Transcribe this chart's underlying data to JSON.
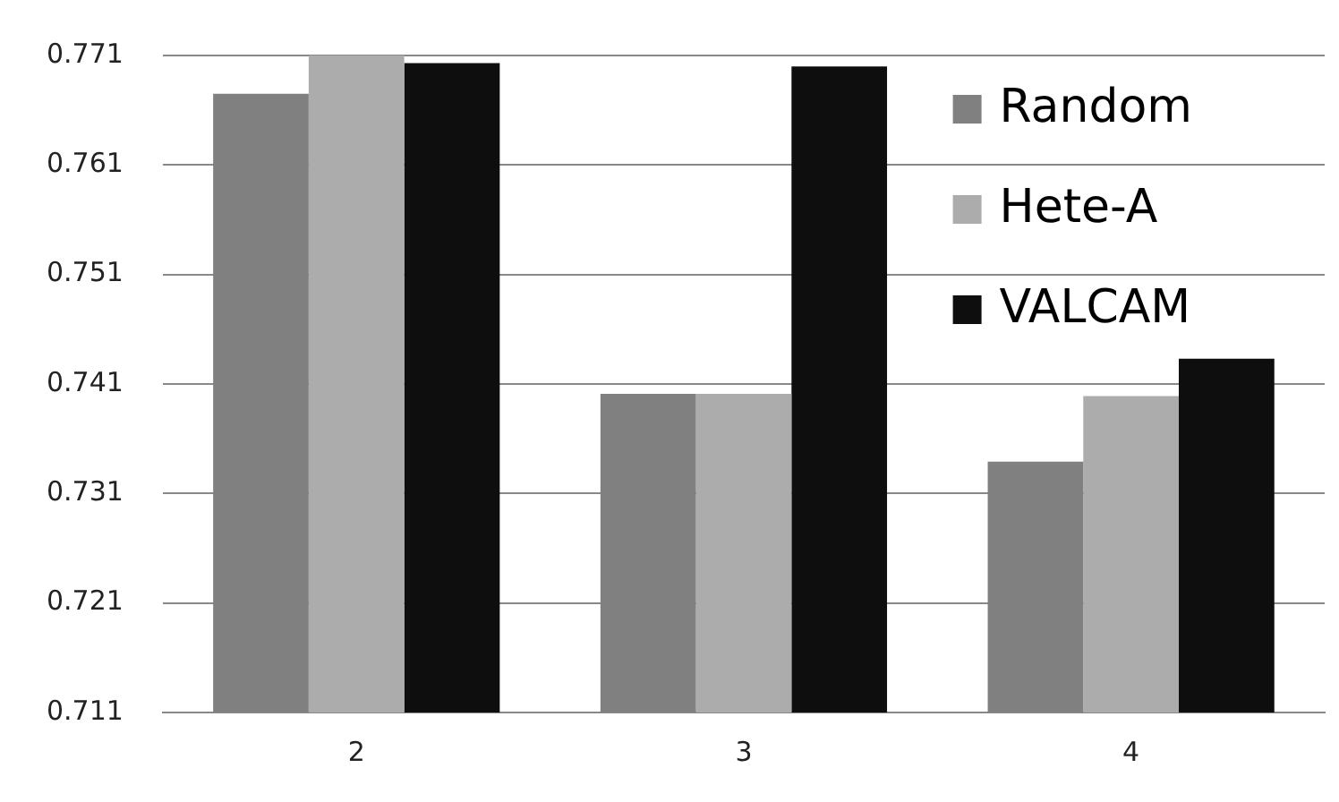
{
  "chart_data": {
    "type": "bar",
    "categories": [
      "2",
      "3",
      "4"
    ],
    "series": [
      {
        "name": "Random",
        "color": "#808080",
        "values": [
          0.7675,
          0.7401,
          0.7339
        ]
      },
      {
        "name": "Hete-A",
        "color": "#acacac",
        "values": [
          0.771,
          0.7401,
          0.7399
        ]
      },
      {
        "name": "VALCAM",
        "color": "#0e0e0e",
        "values": [
          0.7703,
          0.77,
          0.7433
        ]
      }
    ],
    "ylim": [
      0.711,
      0.771
    ],
    "yticks": [
      0.711,
      0.721,
      0.731,
      0.741,
      0.751,
      0.761,
      0.771
    ],
    "grid": "y",
    "legend": "top right"
  }
}
